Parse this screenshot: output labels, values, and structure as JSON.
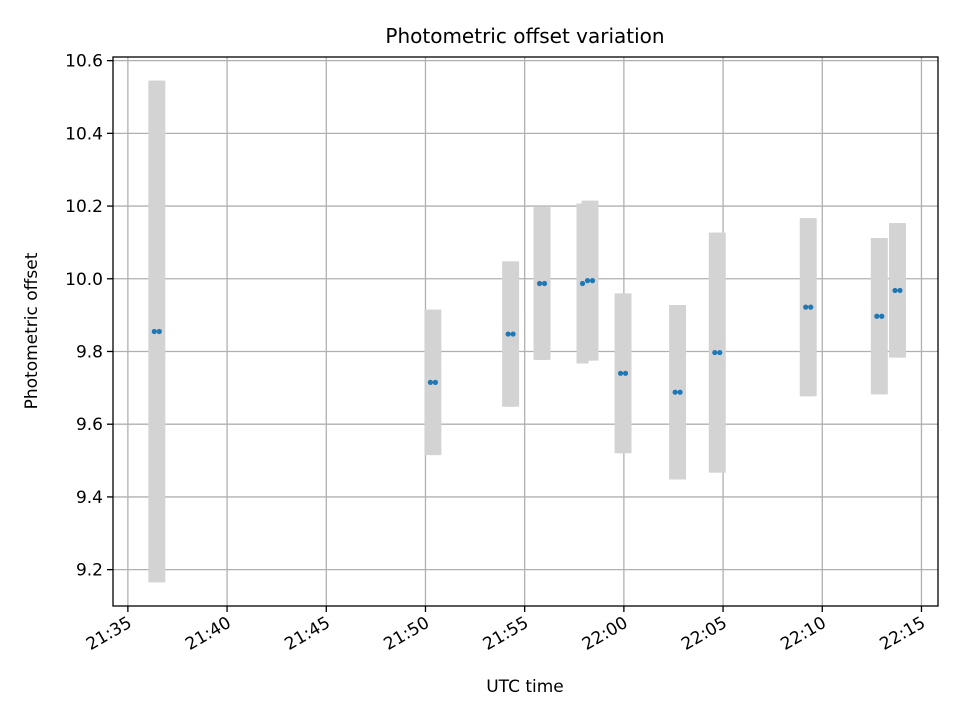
{
  "chart_data": {
    "type": "scatter",
    "title": "Photometric offset variation",
    "xlabel": "UTC time",
    "ylabel": "Photometric offset",
    "grid": true,
    "xlim": [
      "21:34:15",
      "22:15:50"
    ],
    "ylim": [
      9.1,
      10.61
    ],
    "xticks": [
      "21:35",
      "21:40",
      "21:45",
      "21:50",
      "21:55",
      "22:00",
      "22:05",
      "22:10",
      "22:15"
    ],
    "yticks": [
      9.2,
      9.4,
      9.6,
      9.8,
      10.0,
      10.2,
      10.4,
      10.6
    ],
    "point_color": "#1f77b4",
    "errorbar_color": "#d3d3d3",
    "series": [
      {
        "points": [
          {
            "x": "21:36:20",
            "y": 9.855,
            "err": 0.69
          },
          {
            "x": "21:36:35",
            "y": 9.855,
            "err": 0.69
          },
          {
            "x": "21:50:15",
            "y": 9.715,
            "err": 0.2
          },
          {
            "x": "21:50:30",
            "y": 9.715,
            "err": 0.2
          },
          {
            "x": "21:54:10",
            "y": 9.848,
            "err": 0.2
          },
          {
            "x": "21:54:25",
            "y": 9.848,
            "err": 0.2
          },
          {
            "x": "21:55:45",
            "y": 9.987,
            "err": 0.21
          },
          {
            "x": "21:56:00",
            "y": 9.987,
            "err": 0.21
          },
          {
            "x": "21:57:55",
            "y": 9.987,
            "err": 0.22
          },
          {
            "x": "21:58:10",
            "y": 9.995,
            "err": 0.22
          },
          {
            "x": "21:58:25",
            "y": 9.995,
            "err": 0.22
          },
          {
            "x": "21:59:50",
            "y": 9.74,
            "err": 0.22
          },
          {
            "x": "22:00:05",
            "y": 9.74,
            "err": 0.22
          },
          {
            "x": "22:02:35",
            "y": 9.688,
            "err": 0.24
          },
          {
            "x": "22:02:50",
            "y": 9.688,
            "err": 0.24
          },
          {
            "x": "22:04:35",
            "y": 9.797,
            "err": 0.33
          },
          {
            "x": "22:04:50",
            "y": 9.797,
            "err": 0.33
          },
          {
            "x": "22:09:10",
            "y": 9.922,
            "err": 0.245
          },
          {
            "x": "22:09:25",
            "y": 9.922,
            "err": 0.245
          },
          {
            "x": "22:12:45",
            "y": 9.897,
            "err": 0.215
          },
          {
            "x": "22:13:00",
            "y": 9.897,
            "err": 0.215
          },
          {
            "x": "22:13:40",
            "y": 9.968,
            "err": 0.185
          },
          {
            "x": "22:13:55",
            "y": 9.968,
            "err": 0.185
          }
        ]
      }
    ]
  }
}
